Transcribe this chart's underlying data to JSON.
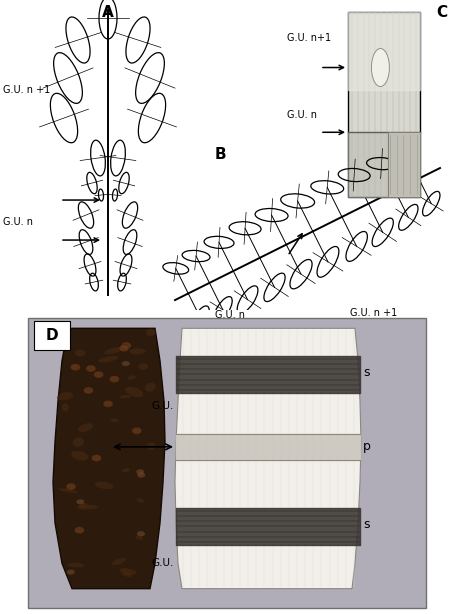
{
  "bg": "#ffffff",
  "lc": "#000000",
  "label_A": "A",
  "label_B": "B",
  "label_C": "C",
  "label_D": "D",
  "text_GU_n1_A": "G.U. n +1",
  "text_GU_n_A": "G.U. n",
  "text_GU_n1_B": "G.U. n +1",
  "text_GU_n_B": "G.U. n",
  "text_GU_n1_C": "G.U. n+1",
  "text_GU_n_C": "G.U. n",
  "text_GU_up_D": "G.U.",
  "text_GU_lo_D": "G.U.",
  "text_s_up": "s",
  "text_s_lo": "s",
  "text_p": "p",
  "photo_bg": "#b0adb8",
  "bark_dark": "#2a1a08",
  "cut_cream": "#f2efea",
  "dark_band_color": "#3a3530",
  "pith_color": "#ccc8c0"
}
